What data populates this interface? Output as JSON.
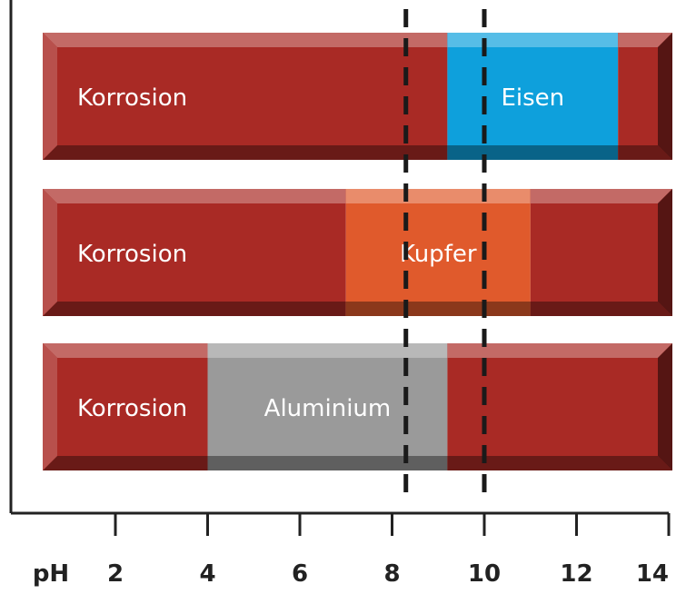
{
  "chart_data": {
    "type": "bar",
    "xlabel": "pH",
    "xlim": [
      0,
      14
    ],
    "ticks": [
      2,
      4,
      6,
      8,
      10,
      12,
      14
    ],
    "tick_labels": [
      "2",
      "4",
      "6",
      "8",
      "10",
      "12",
      "14"
    ],
    "bars": [
      {
        "metal": "Eisen",
        "corrosion_label": "Korrosion",
        "stable_start": 9.2,
        "stable_end": 12.9,
        "color": "#0ea0dc"
      },
      {
        "metal": "Kupfer",
        "corrosion_label": "Korrosion",
        "stable_start": 7.0,
        "stable_end": 11.0,
        "color": "#e05a2c"
      },
      {
        "metal": "Aluminium",
        "corrosion_label": "Korrosion",
        "stable_start": 4.0,
        "stable_end": 9.2,
        "color": "#9a9a9a"
      }
    ],
    "reference_lines": [
      8.3,
      10.0
    ],
    "corrosion_color": "#a92a25"
  }
}
